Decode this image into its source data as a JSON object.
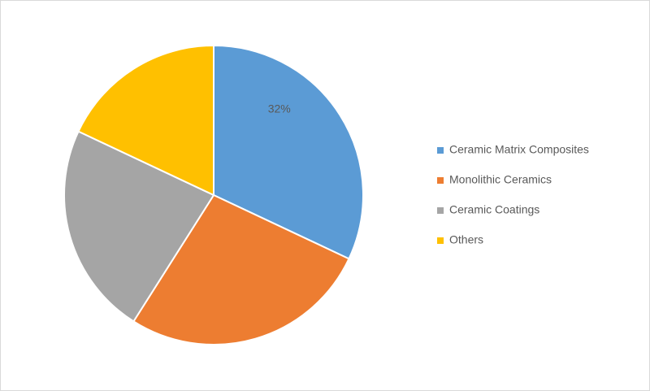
{
  "chart_data": {
    "type": "pie",
    "categories": [
      "Ceramic Matrix Composites",
      "Monolithic Ceramics",
      "Ceramic Coatings",
      "Others"
    ],
    "values": [
      32,
      27,
      23,
      18
    ],
    "value_labels": [
      "32%",
      null,
      null,
      null
    ],
    "colors": [
      "#5b9bd5",
      "#ed7d31",
      "#a5a5a5",
      "#ffc000"
    ],
    "legend": "right"
  }
}
